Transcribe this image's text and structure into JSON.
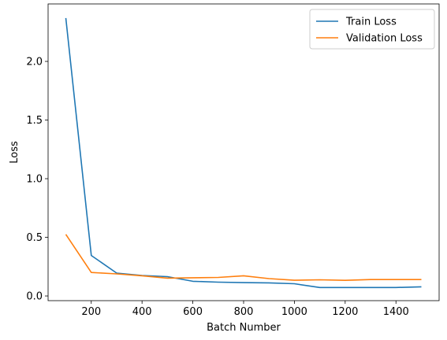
{
  "chart_data": {
    "type": "line",
    "title": "",
    "xlabel": "Batch Number",
    "ylabel": "Loss",
    "xlim": [
      30,
      1570
    ],
    "ylim": [
      -0.04,
      2.49
    ],
    "grid": false,
    "legend_position": "top-right",
    "xticks": [
      200,
      400,
      600,
      800,
      1000,
      1200,
      1400
    ],
    "yticks": [
      0.0,
      0.5,
      1.0,
      1.5,
      2.0
    ],
    "xtick_labels": [
      "200",
      "400",
      "600",
      "800",
      "1000",
      "1200",
      "1400"
    ],
    "ytick_labels": [
      "0.0",
      "0.5",
      "1.0",
      "1.5",
      "2.0"
    ],
    "x": [
      100,
      200,
      300,
      400,
      500,
      600,
      700,
      800,
      900,
      1000,
      1100,
      1200,
      1300,
      1400,
      1500
    ],
    "series": [
      {
        "name": "Train Loss",
        "color": "#1f77b4",
        "values": [
          2.37,
          0.345,
          0.195,
          0.175,
          0.165,
          0.125,
          0.118,
          0.114,
          0.112,
          0.104,
          0.072,
          0.072,
          0.072,
          0.072,
          0.078
        ]
      },
      {
        "name": "Validation Loss",
        "color": "#ff7f0e",
        "values": [
          0.525,
          0.2,
          0.188,
          0.172,
          0.152,
          0.155,
          0.158,
          0.172,
          0.148,
          0.134,
          0.138,
          0.133,
          0.14,
          0.14,
          0.14
        ]
      }
    ]
  }
}
